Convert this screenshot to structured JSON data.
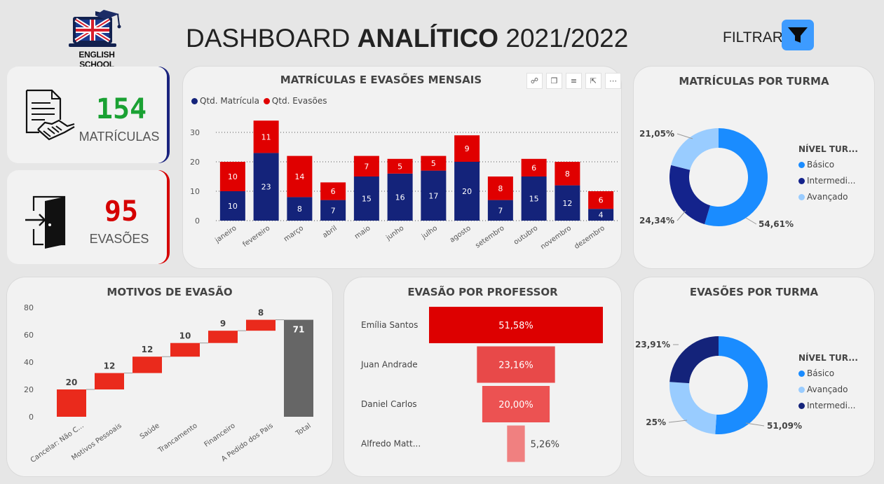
{
  "header": {
    "logo_text": "ENGLISH SCHOOL",
    "title_regular_1": "DASHBOARD ",
    "title_bold": "ANALÍTICO",
    "title_regular_2": " 2021/2022",
    "filter_label": "FILTRAR",
    "filter_icon": "funnel-icon"
  },
  "kpis": {
    "matriculas": {
      "value": "154",
      "label": "MATRÍCULAS",
      "color": "#1aa133",
      "accent": "#1a237e",
      "icon": "contract-handshake-icon"
    },
    "evasoes": {
      "value": "95",
      "label": "EVASÕES",
      "color": "#d50000",
      "accent": "#d50000",
      "icon": "exit-door-icon"
    }
  },
  "monthly": {
    "title": "MATRÍCULAS E EVASÕES MENSAIS",
    "visual_toolbar": [
      "pin-icon",
      "copy-icon",
      "filter-icon",
      "focus-icon",
      "more-icon"
    ]
  },
  "by_class": {
    "title": "MATRÍCULAS POR TURMA",
    "legend_title": "NÍVEL TUR..."
  },
  "reasons": {
    "title": "MOTIVOS DE EVASÃO"
  },
  "teachers": {
    "title": "EVASÃO POR PROFESSOR"
  },
  "evasion_class": {
    "title": "EVASÕES POR TURMA",
    "legend_title": "NÍVEL TUR..."
  },
  "chart_data": [
    {
      "type": "bar",
      "stacked": true,
      "title": "MATRÍCULAS E EVASÕES MENSAIS",
      "categories": [
        "janeiro",
        "fevereiro",
        "março",
        "abril",
        "maio",
        "junho",
        "julho",
        "agosto",
        "setembro",
        "outubro",
        "novembro",
        "dezembro"
      ],
      "series": [
        {
          "name": "Qtd. Matrícula",
          "color": "#14237a",
          "values": [
            10,
            23,
            8,
            7,
            15,
            16,
            17,
            20,
            7,
            15,
            12,
            4
          ]
        },
        {
          "name": "Qtd. Evasões",
          "color": "#e00000",
          "values": [
            10,
            11,
            14,
            6,
            7,
            5,
            5,
            9,
            8,
            6,
            8,
            6
          ]
        }
      ],
      "yticks": [
        "0",
        "10",
        "20",
        "30"
      ],
      "ylim": [
        0,
        35
      ],
      "legend": "top-left"
    },
    {
      "type": "pie",
      "donut": true,
      "title": "MATRÍCULAS POR TURMA",
      "legend_title": "NÍVEL TUR...",
      "slices": [
        {
          "label": "Básico",
          "value": 54.61,
          "text": "54,61%",
          "color": "#1a8cff"
        },
        {
          "label": "Intermedi...",
          "value": 24.34,
          "text": "24,34%",
          "color": "#14238c"
        },
        {
          "label": "Avançado",
          "value": 21.05,
          "text": "21,05%",
          "color": "#99ccff"
        }
      ]
    },
    {
      "type": "bar",
      "subtype": "waterfall",
      "title": "MOTIVOS DE EVASÃO",
      "categories": [
        "Cancelar: Não C...",
        "Motivos Pessoais",
        "Saúde",
        "Trancamento",
        "Financeiro",
        "A Pedido dos Pais",
        "Total"
      ],
      "values": [
        20,
        12,
        12,
        10,
        9,
        8,
        71
      ],
      "bar_color": "#ea2a1c",
      "total_color": "#666666",
      "yticks": [
        "0",
        "20",
        "40",
        "60",
        "80"
      ],
      "ylim": [
        0,
        80
      ]
    },
    {
      "type": "bar",
      "subtype": "funnel",
      "title": "EVASÃO POR PROFESSOR",
      "categories": [
        "Emília Santos",
        "Juan Andrade",
        "Daniel Carlos",
        "Alfredo Matt..."
      ],
      "values": [
        51.58,
        23.16,
        20.0,
        5.26
      ],
      "value_labels": [
        "51,58%",
        "23,16%",
        "20,00%",
        "5,26%"
      ],
      "colors": [
        "#dd0000",
        "#e84949",
        "#ec5252",
        "#f08080"
      ]
    },
    {
      "type": "pie",
      "donut": true,
      "title": "EVASÕES POR TURMA",
      "legend_title": "NÍVEL TUR...",
      "slices": [
        {
          "label": "Básico",
          "value": 51.09,
          "text": "51,09%",
          "color": "#1a8cff"
        },
        {
          "label": "Avançado",
          "value": 25,
          "text": "25%",
          "color": "#99ccff"
        },
        {
          "label": "Intermedi...",
          "value": 23.91,
          "text": "23,91%",
          "color": "#14237a"
        }
      ]
    }
  ]
}
